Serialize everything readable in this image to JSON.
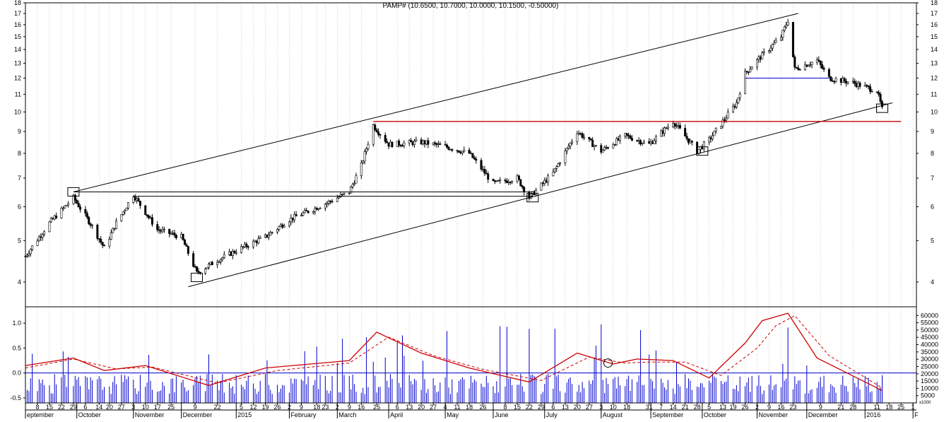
{
  "chart_data": [
    {
      "type": "candlestick",
      "title": "PAMP# (10.6500, 10.7000, 10.0000, 10.1500, -0.50000)",
      "y_scale": "log",
      "ylim": [
        3.5,
        18
      ],
      "y_ticks": [
        4,
        5,
        6,
        7,
        8,
        9,
        10,
        11,
        12,
        13,
        14,
        15,
        16,
        17,
        18
      ],
      "grid": "vertical dotted",
      "price_points": [
        {
          "date": "2014-09-01",
          "close": 4.6
        },
        {
          "date": "2014-09-15",
          "close": 5.5
        },
        {
          "date": "2014-09-29",
          "close": 6.3
        },
        {
          "date": "2014-10-10",
          "close": 5.4
        },
        {
          "date": "2014-10-17",
          "close": 4.8
        },
        {
          "date": "2014-10-24",
          "close": 5.5
        },
        {
          "date": "2014-11-03",
          "close": 6.4
        },
        {
          "date": "2014-11-17",
          "close": 5.3
        },
        {
          "date": "2014-12-01",
          "close": 5.1
        },
        {
          "date": "2014-12-10",
          "close": 4.2
        },
        {
          "date": "2014-12-22",
          "close": 4.5
        },
        {
          "date": "2015-01-05",
          "close": 4.8
        },
        {
          "date": "2015-01-19",
          "close": 5.1
        },
        {
          "date": "2015-02-02",
          "close": 5.6
        },
        {
          "date": "2015-02-23",
          "close": 6.1
        },
        {
          "date": "2015-03-09",
          "close": 6.5
        },
        {
          "date": "2015-03-16",
          "close": 7.5
        },
        {
          "date": "2015-03-23",
          "close": 9.3
        },
        {
          "date": "2015-04-01",
          "close": 8.4
        },
        {
          "date": "2015-04-20",
          "close": 8.5
        },
        {
          "date": "2015-05-04",
          "close": 8.3
        },
        {
          "date": "2015-05-18",
          "close": 8.0
        },
        {
          "date": "2015-06-01",
          "close": 6.8
        },
        {
          "date": "2015-06-15",
          "close": 7.0
        },
        {
          "date": "2015-06-22",
          "close": 6.3
        },
        {
          "date": "2015-07-06",
          "close": 7.2
        },
        {
          "date": "2015-07-20",
          "close": 9.0
        },
        {
          "date": "2015-08-03",
          "close": 8.1
        },
        {
          "date": "2015-08-17",
          "close": 8.8
        },
        {
          "date": "2015-08-31",
          "close": 8.4
        },
        {
          "date": "2015-09-14",
          "close": 9.5
        },
        {
          "date": "2015-09-28",
          "close": 8.1
        },
        {
          "date": "2015-10-05",
          "close": 8.6
        },
        {
          "date": "2015-10-13",
          "close": 9.5
        },
        {
          "date": "2015-10-21",
          "close": 10.5
        },
        {
          "date": "2015-10-26",
          "close": 12.3
        },
        {
          "date": "2015-11-02",
          "close": 13.2
        },
        {
          "date": "2015-11-16",
          "close": 15.0
        },
        {
          "date": "2015-11-20",
          "close": 16.4
        },
        {
          "date": "2015-11-24",
          "close": 12.6
        },
        {
          "date": "2015-12-07",
          "close": 13.2
        },
        {
          "date": "2015-12-14",
          "close": 12.0
        },
        {
          "date": "2015-12-28",
          "close": 11.7
        },
        {
          "date": "2016-01-11",
          "close": 11.2
        },
        {
          "date": "2016-01-14",
          "close": 10.15
        }
      ],
      "lines": [
        {
          "style": "black",
          "points": [
            {
              "date": "2014-09-29",
              "y": 6.5
            },
            {
              "date": "2015-11-26",
              "y": 17.0
            }
          ]
        },
        {
          "style": "black",
          "points": [
            {
              "date": "2014-12-05",
              "y": 3.9
            },
            {
              "date": "2016-01-20",
              "y": 10.5
            }
          ]
        },
        {
          "style": "black",
          "points": [
            {
              "date": "2014-09-29",
              "y": 6.5
            },
            {
              "date": "2015-06-24",
              "y": 6.5
            }
          ]
        },
        {
          "style": "black",
          "points": [
            {
              "date": "2014-11-03",
              "y": 6.35
            },
            {
              "date": "2015-06-24",
              "y": 6.35
            }
          ]
        },
        {
          "style": "red",
          "points": [
            {
              "date": "2015-03-23",
              "y": 9.5
            },
            {
              "date": "2016-01-25",
              "y": 9.5
            }
          ]
        },
        {
          "style": "blue",
          "points": [
            {
              "date": "2015-10-26",
              "y": 12.0
            },
            {
              "date": "2015-12-14",
              "y": 12.0
            }
          ]
        }
      ],
      "marker_boxes": [
        {
          "date": "2014-09-29",
          "y": 6.5
        },
        {
          "date": "2014-12-10",
          "y": 4.1
        },
        {
          "date": "2015-06-24",
          "y": 6.3
        },
        {
          "date": "2015-10-01",
          "y": 8.1
        },
        {
          "date": "2016-01-14",
          "y": 10.2
        }
      ]
    },
    {
      "type": "bar+line",
      "left_ylim": [
        -0.6,
        1.3
      ],
      "left_ticks": [
        "1.0",
        "0.5",
        "0.0",
        "-0.5"
      ],
      "right_ylim": [
        0,
        65000
      ],
      "right_ticks": [
        "60000",
        "55000",
        "50000",
        "45000",
        "40000",
        "35000",
        "30000",
        "25000",
        "20000",
        "15000",
        "10000",
        "5000"
      ],
      "right_extra_label": "x1000",
      "zero_line": 0.0,
      "oscillator_solid": [
        {
          "date": "2014-09-01",
          "value": 0.15
        },
        {
          "date": "2014-09-29",
          "value": 0.3
        },
        {
          "date": "2014-10-17",
          "value": 0.05
        },
        {
          "date": "2014-11-10",
          "value": 0.15
        },
        {
          "date": "2014-12-17",
          "value": -0.25
        },
        {
          "date": "2015-01-19",
          "value": 0.1
        },
        {
          "date": "2015-03-09",
          "value": 0.25
        },
        {
          "date": "2015-03-25",
          "value": 0.82
        },
        {
          "date": "2015-04-20",
          "value": 0.4
        },
        {
          "date": "2015-05-18",
          "value": 0.1
        },
        {
          "date": "2015-06-22",
          "value": -0.18
        },
        {
          "date": "2015-07-20",
          "value": 0.4
        },
        {
          "date": "2015-08-10",
          "value": 0.18
        },
        {
          "date": "2015-08-24",
          "value": 0.28
        },
        {
          "date": "2015-09-14",
          "value": 0.25
        },
        {
          "date": "2015-10-05",
          "value": -0.1
        },
        {
          "date": "2015-10-26",
          "value": 0.6
        },
        {
          "date": "2015-11-05",
          "value": 1.05
        },
        {
          "date": "2015-11-20",
          "value": 1.2
        },
        {
          "date": "2015-12-07",
          "value": 0.3
        },
        {
          "date": "2016-01-14",
          "value": -0.35
        }
      ],
      "oscillator_dashed": [
        {
          "date": "2014-09-01",
          "value": 0.1
        },
        {
          "date": "2014-09-29",
          "value": 0.28
        },
        {
          "date": "2014-10-24",
          "value": 0.08
        },
        {
          "date": "2014-11-14",
          "value": 0.12
        },
        {
          "date": "2014-12-22",
          "value": -0.2
        },
        {
          "date": "2015-01-26",
          "value": 0.05
        },
        {
          "date": "2015-03-09",
          "value": 0.2
        },
        {
          "date": "2015-04-01",
          "value": 0.72
        },
        {
          "date": "2015-04-27",
          "value": 0.35
        },
        {
          "date": "2015-05-25",
          "value": 0.08
        },
        {
          "date": "2015-06-29",
          "value": -0.15
        },
        {
          "date": "2015-07-27",
          "value": 0.32
        },
        {
          "date": "2015-08-17",
          "value": 0.2
        },
        {
          "date": "2015-08-31",
          "value": 0.22
        },
        {
          "date": "2015-09-21",
          "value": 0.22
        },
        {
          "date": "2015-10-12",
          "value": -0.05
        },
        {
          "date": "2015-11-02",
          "value": 0.5
        },
        {
          "date": "2015-11-13",
          "value": 0.95
        },
        {
          "date": "2015-11-24",
          "value": 1.15
        },
        {
          "date": "2015-12-14",
          "value": 0.35
        },
        {
          "date": "2016-01-14",
          "value": -0.3
        }
      ],
      "circle_marker": {
        "date": "2015-08-07",
        "value": 0.2
      },
      "volume_note": "daily volume bars (blue), right axis"
    }
  ],
  "x_axis": {
    "day_labels": [
      {
        "label": "8",
        "date": "2014-09-08"
      },
      {
        "label": "15",
        "date": "2014-09-15"
      },
      {
        "label": "22",
        "date": "2014-09-22"
      },
      {
        "label": "29",
        "date": "2014-09-29"
      },
      {
        "label": "6",
        "date": "2014-10-06"
      },
      {
        "label": "14",
        "date": "2014-10-14"
      },
      {
        "label": "20",
        "date": "2014-10-20"
      },
      {
        "label": "27",
        "date": "2014-10-27"
      },
      {
        "label": "3",
        "date": "2014-11-03"
      },
      {
        "label": "10",
        "date": "2014-11-10"
      },
      {
        "label": "17",
        "date": "2014-11-17"
      },
      {
        "label": "25",
        "date": "2014-11-25"
      },
      {
        "label": "9",
        "date": "2014-12-09"
      },
      {
        "label": "22",
        "date": "2014-12-22"
      },
      {
        "label": "5",
        "date": "2015-01-05"
      },
      {
        "label": "12",
        "date": "2015-01-12"
      },
      {
        "label": "19",
        "date": "2015-01-19"
      },
      {
        "label": "26",
        "date": "2015-01-26"
      },
      {
        "label": "2",
        "date": "2015-02-02"
      },
      {
        "label": "9",
        "date": "2015-02-09"
      },
      {
        "label": "18",
        "date": "2015-02-18"
      },
      {
        "label": "23",
        "date": "2015-02-23"
      },
      {
        "label": "2",
        "date": "2015-03-02"
      },
      {
        "label": "9",
        "date": "2015-03-09"
      },
      {
        "label": "16",
        "date": "2015-03-16"
      },
      {
        "label": "25",
        "date": "2015-03-25"
      },
      {
        "label": "6",
        "date": "2015-04-06"
      },
      {
        "label": "13",
        "date": "2015-04-13"
      },
      {
        "label": "20",
        "date": "2015-04-20"
      },
      {
        "label": "27",
        "date": "2015-04-27"
      },
      {
        "label": "4",
        "date": "2015-05-04"
      },
      {
        "label": "11",
        "date": "2015-05-11"
      },
      {
        "label": "18",
        "date": "2015-05-18"
      },
      {
        "label": "26",
        "date": "2015-05-26"
      },
      {
        "label": "8",
        "date": "2015-06-08"
      },
      {
        "label": "15",
        "date": "2015-06-15"
      },
      {
        "label": "22",
        "date": "2015-06-22"
      },
      {
        "label": "29",
        "date": "2015-06-29"
      },
      {
        "label": "6",
        "date": "2015-07-06"
      },
      {
        "label": "13",
        "date": "2015-07-13"
      },
      {
        "label": "20",
        "date": "2015-07-20"
      },
      {
        "label": "27",
        "date": "2015-07-27"
      },
      {
        "label": "3",
        "date": "2015-08-03"
      },
      {
        "label": "10",
        "date": "2015-08-10"
      },
      {
        "label": "18",
        "date": "2015-08-18"
      },
      {
        "label": "31",
        "date": "2015-08-31"
      },
      {
        "label": "7",
        "date": "2015-09-07"
      },
      {
        "label": "14",
        "date": "2015-09-14"
      },
      {
        "label": "21",
        "date": "2015-09-21"
      },
      {
        "label": "28",
        "date": "2015-09-28"
      },
      {
        "label": "5",
        "date": "2015-10-05"
      },
      {
        "label": "13",
        "date": "2015-10-13"
      },
      {
        "label": "19",
        "date": "2015-10-19"
      },
      {
        "label": "26",
        "date": "2015-10-26"
      },
      {
        "label": "2",
        "date": "2015-11-02"
      },
      {
        "label": "9",
        "date": "2015-11-09"
      },
      {
        "label": "16",
        "date": "2015-11-16"
      },
      {
        "label": "23",
        "date": "2015-11-23"
      },
      {
        "label": "9",
        "date": "2015-12-09"
      },
      {
        "label": "21",
        "date": "2015-12-21"
      },
      {
        "label": "28",
        "date": "2015-12-28"
      },
      {
        "label": "11",
        "date": "2016-01-11"
      },
      {
        "label": "18",
        "date": "2016-01-18"
      },
      {
        "label": "25",
        "date": "2016-01-25"
      },
      {
        "label": "1",
        "date": "2016-02-01"
      }
    ],
    "month_labels": [
      {
        "label": "eptember",
        "date": "2014-09-01"
      },
      {
        "label": "October",
        "date": "2014-10-01"
      },
      {
        "label": "November",
        "date": "2014-11-03"
      },
      {
        "label": "December",
        "date": "2014-12-01"
      },
      {
        "label": "2015",
        "date": "2015-01-02"
      },
      {
        "label": "February",
        "date": "2015-02-02"
      },
      {
        "label": "March",
        "date": "2015-03-02"
      },
      {
        "label": "April",
        "date": "2015-04-01"
      },
      {
        "label": "May",
        "date": "2015-05-04"
      },
      {
        "label": "June",
        "date": "2015-06-01"
      },
      {
        "label": "July",
        "date": "2015-07-01"
      },
      {
        "label": "August",
        "date": "2015-08-03"
      },
      {
        "label": "September",
        "date": "2015-09-01"
      },
      {
        "label": "October",
        "date": "2015-10-01"
      },
      {
        "label": "November",
        "date": "2015-11-02"
      },
      {
        "label": "December",
        "date": "2015-12-01"
      },
      {
        "label": "2016",
        "date": "2016-01-04"
      },
      {
        "label": "F",
        "date": "2016-02-01"
      }
    ]
  },
  "colors": {
    "price_bar": "#000000",
    "trend_line": "#000000",
    "resistance_line": "#cc0000",
    "support_blue": "#0000cc",
    "oscillator": "#cc0000",
    "volume": "#0000cc",
    "grid": "#b0b0b0"
  }
}
